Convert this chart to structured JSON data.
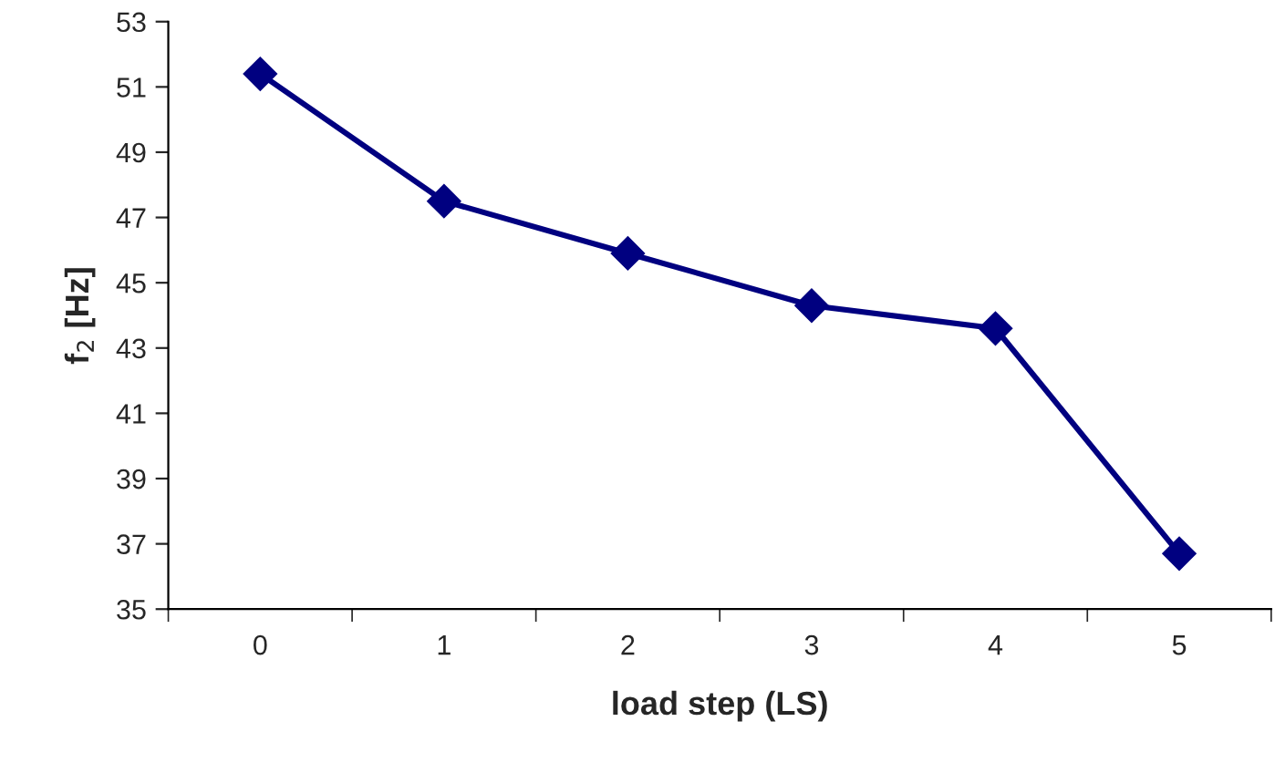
{
  "chart_data": {
    "type": "line",
    "xlabel": "load step (LS)",
    "ylabel": "f$_{2}$ [Hz]",
    "categories": [
      "0",
      "1",
      "2",
      "3",
      "4",
      "5"
    ],
    "series": [
      {
        "color": "#000080",
        "values": [
          51.4,
          47.5,
          45.9,
          44.3,
          43.6,
          36.7
        ]
      }
    ],
    "ylim": [
      35,
      53
    ],
    "yticks": [
      35,
      37,
      39,
      41,
      43,
      45,
      47,
      49,
      51,
      53
    ],
    "grid": false,
    "legend": false,
    "marker": "diamond",
    "line_style": "solid"
  }
}
